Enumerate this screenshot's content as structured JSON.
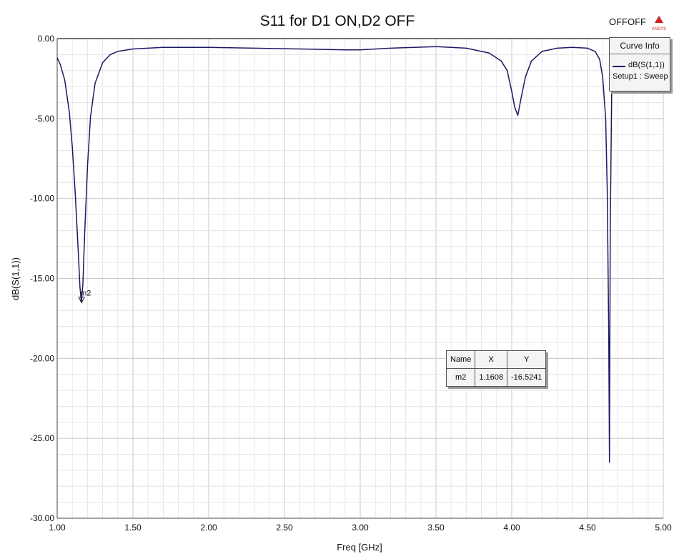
{
  "header": {
    "top_right_label": "OFFOFF",
    "logo_text": "ANSYS"
  },
  "legend": {
    "title": "Curve Info",
    "series_label": "dB(S(1,1))",
    "setup_label": "Setup1 : Sweep",
    "line_color": "#1a1a66"
  },
  "marker_table": {
    "headers": [
      "Name",
      "X",
      "Y"
    ],
    "row": [
      "m2",
      "1.1608",
      "-16.5241"
    ]
  },
  "chart_data": {
    "type": "line",
    "title": "S11 for D1 ON,D2 OFF",
    "xlabel": "Freq [GHz]",
    "ylabel": "dB(S(1,1))",
    "xlim": [
      1.0,
      5.0
    ],
    "ylim": [
      -30.0,
      0.0
    ],
    "x_ticks": [
      "1.00",
      "1.50",
      "2.00",
      "2.50",
      "3.00",
      "3.50",
      "4.00",
      "4.50",
      "5.00"
    ],
    "y_ticks": [
      "0.00",
      "-5.00",
      "-10.00",
      "-15.00",
      "-20.00",
      "-25.00",
      "-30.00"
    ],
    "grid": true,
    "series": [
      {
        "name": "dB(S(1,1))",
        "color": "#1a1a66",
        "x": [
          1.0,
          1.02,
          1.05,
          1.08,
          1.1,
          1.12,
          1.14,
          1.15,
          1.16,
          1.17,
          1.18,
          1.2,
          1.22,
          1.25,
          1.3,
          1.35,
          1.4,
          1.5,
          1.7,
          2.0,
          2.3,
          2.6,
          2.9,
          3.0,
          3.2,
          3.5,
          3.7,
          3.85,
          3.93,
          3.97,
          4.0,
          4.02,
          4.04,
          4.06,
          4.09,
          4.13,
          4.2,
          4.3,
          4.4,
          4.5,
          4.55,
          4.58,
          4.6,
          4.62,
          4.63,
          4.64,
          4.645,
          4.65,
          4.66,
          4.67
        ],
        "y": [
          -1.2,
          -1.6,
          -2.6,
          -4.6,
          -6.8,
          -9.8,
          -13.5,
          -15.5,
          -16.5,
          -15.3,
          -12.5,
          -8.0,
          -4.9,
          -2.8,
          -1.5,
          -1.0,
          -0.8,
          -0.65,
          -0.55,
          -0.55,
          -0.6,
          -0.65,
          -0.7,
          -0.7,
          -0.6,
          -0.5,
          -0.6,
          -0.9,
          -1.4,
          -2.0,
          -3.3,
          -4.3,
          -4.8,
          -3.8,
          -2.4,
          -1.4,
          -0.8,
          -0.6,
          -0.55,
          -0.6,
          -0.8,
          -1.3,
          -2.4,
          -5.0,
          -9.5,
          -18.5,
          -26.5,
          -12.0,
          -3.0,
          -0.6
        ]
      }
    ],
    "marker": {
      "name": "m2",
      "x": 1.1608,
      "y": -16.5241
    }
  }
}
